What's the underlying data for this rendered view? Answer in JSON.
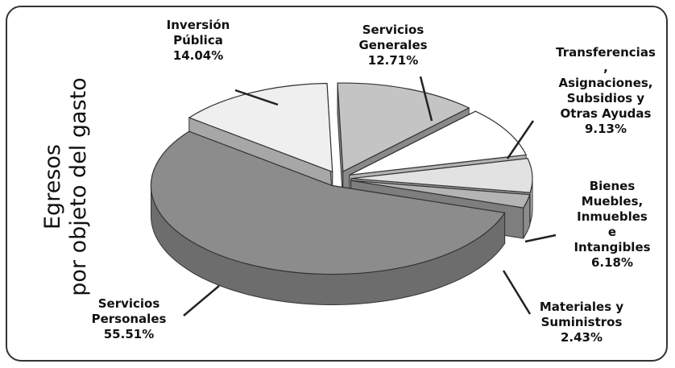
{
  "chart_data": {
    "type": "pie",
    "title": "Egresos\npor objeto del gasto",
    "categories": [
      "Servicios\nGenerales",
      "Transferencias\n, Asignaciones,\nSubsidios y\nOtras Ayudas",
      "Bienes\nMuebles,\nInmuebles e\nIntangibles",
      "Materiales y\nSuministros",
      "Servicios\nPersonales",
      "Inversión\nPública"
    ],
    "values": [
      12.71,
      9.13,
      6.18,
      2.43,
      55.51,
      14.04
    ],
    "value_labels": [
      "12.71%",
      "9.13%",
      "6.18%",
      "2.43%",
      "55.51%",
      "14.04%"
    ],
    "colors": [
      "#c4c4c4",
      "#ffffff",
      "#e2e2e2",
      "#b4b4b4",
      "#8c8c8c",
      "#efefef"
    ]
  }
}
